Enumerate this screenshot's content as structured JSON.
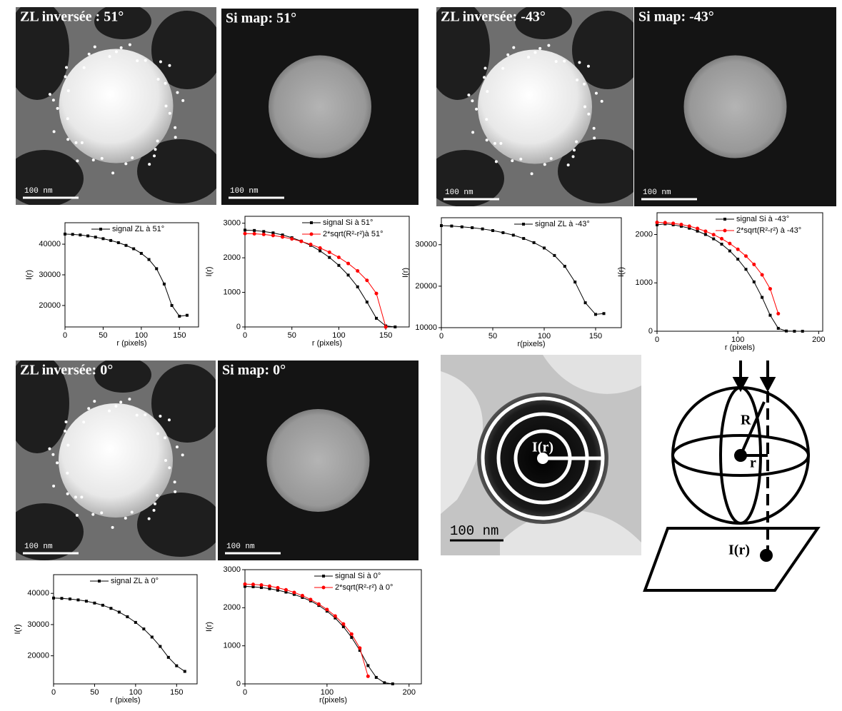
{
  "panels": [
    {
      "title": "ZL inversée : 51°",
      "scale_bar": "100 nm"
    },
    {
      "title": "Si map: 51°",
      "scale_bar": "100 nm"
    },
    {
      "title": "ZL inversée: -43°",
      "scale_bar": "100 nm"
    },
    {
      "title": "Si map: -43°",
      "scale_bar": "100 nm"
    },
    {
      "title": "ZL inversée: 0°",
      "scale_bar": "100 nm"
    },
    {
      "title": "Si map: 0°",
      "scale_bar": "100 nm"
    }
  ],
  "schematic": {
    "photo_label": "I(r)",
    "scale_bar": "100 nm",
    "radius_label": "R",
    "r_label": "r",
    "projection_label": "I(r)"
  },
  "chart_data": [
    {
      "type": "line",
      "x_label": "r (pixels)",
      "y_label": "I(r)",
      "xlim": [
        0,
        175
      ],
      "ylim": [
        13000,
        47000
      ],
      "xticks": [
        0,
        50,
        100,
        150
      ],
      "yticks": [
        20000,
        30000,
        40000
      ],
      "x": [
        0,
        10,
        20,
        30,
        40,
        50,
        60,
        70,
        80,
        90,
        100,
        110,
        120,
        130,
        140,
        150,
        160
      ],
      "series": [
        {
          "name": "signal ZL à 51°",
          "color": "#000000",
          "values": [
            43300,
            43200,
            43000,
            42700,
            42300,
            41800,
            41200,
            40500,
            39600,
            38500,
            37000,
            35000,
            32000,
            27000,
            20000,
            16500,
            16800
          ]
        }
      ]
    },
    {
      "type": "line",
      "x_label": "r (pixels)",
      "y_label": "I(r)",
      "xlim": [
        0,
        175
      ],
      "ylim": [
        0,
        3200
      ],
      "xticks": [
        0,
        50,
        100,
        150
      ],
      "yticks": [
        0,
        1000,
        2000,
        3000
      ],
      "x": [
        0,
        10,
        20,
        30,
        40,
        50,
        60,
        70,
        80,
        90,
        100,
        110,
        120,
        130,
        140,
        150,
        160
      ],
      "series": [
        {
          "name": "signal Si à 51°",
          "color": "#000000",
          "values": [
            2800,
            2790,
            2760,
            2720,
            2660,
            2580,
            2480,
            2360,
            2200,
            2010,
            1780,
            1500,
            1160,
            720,
            250,
            30,
            0
          ]
        },
        {
          "name": "2*sqrt(R²-r²)à 51°",
          "color": "#ff0000",
          "values": [
            2700,
            2694,
            2676,
            2645,
            2602,
            2546,
            2475,
            2388,
            2284,
            2160,
            2012,
            1836,
            1620,
            1347,
            969,
            0,
            null
          ]
        }
      ]
    },
    {
      "type": "line",
      "x_label": "r(pixels)",
      "y_label": "I(r)",
      "xlim": [
        0,
        175
      ],
      "ylim": [
        10000,
        36500
      ],
      "xticks": [
        0,
        50,
        100,
        150
      ],
      "yticks": [
        10000,
        20000,
        30000
      ],
      "x": [
        0,
        10,
        20,
        30,
        40,
        50,
        60,
        70,
        80,
        90,
        100,
        110,
        120,
        130,
        140,
        150,
        158
      ],
      "series": [
        {
          "name": "signal ZL à -43°",
          "color": "#000000",
          "values": [
            34600,
            34500,
            34300,
            34100,
            33800,
            33400,
            32900,
            32300,
            31500,
            30500,
            29200,
            27400,
            24800,
            21000,
            16000,
            13200,
            13400
          ]
        }
      ]
    },
    {
      "type": "line",
      "x_label": "r (pixels)",
      "y_label": "I(r)",
      "xlim": [
        0,
        205
      ],
      "ylim": [
        0,
        2450
      ],
      "xticks": [
        0,
        100,
        200
      ],
      "yticks": [
        0,
        1000,
        2000
      ],
      "x": [
        0,
        10,
        20,
        30,
        40,
        50,
        60,
        70,
        80,
        90,
        100,
        110,
        120,
        130,
        140,
        150,
        160,
        170,
        180
      ],
      "series": [
        {
          "name": "signal Si à -43°",
          "color": "#000000",
          "values": [
            2200,
            2220,
            2200,
            2170,
            2130,
            2070,
            2000,
            1910,
            1800,
            1660,
            1490,
            1280,
            1020,
            700,
            330,
            60,
            5,
            0,
            0
          ]
        },
        {
          "name": "2*sqrt(R²-r²) à -43°",
          "color": "#ff0000",
          "values": [
            2250,
            2245,
            2230,
            2206,
            2171,
            2125,
            2067,
            1997,
            1913,
            1813,
            1694,
            1553,
            1381,
            1166,
            877,
            364,
            null,
            null,
            null
          ]
        }
      ]
    },
    {
      "type": "line",
      "x_label": "r (pixels)",
      "y_label": "I(r)",
      "xlim": [
        0,
        175
      ],
      "ylim": [
        11000,
        46000
      ],
      "xticks": [
        0,
        50,
        100,
        150
      ],
      "yticks": [
        20000,
        30000,
        40000
      ],
      "x": [
        0,
        10,
        20,
        30,
        40,
        50,
        60,
        70,
        80,
        90,
        100,
        110,
        120,
        130,
        140,
        150,
        160
      ],
      "series": [
        {
          "name": "signal ZL à 0°",
          "color": "#000000",
          "values": [
            38500,
            38400,
            38200,
            37900,
            37500,
            36900,
            36200,
            35200,
            34000,
            32500,
            30700,
            28600,
            26000,
            23000,
            19500,
            16800,
            15000
          ]
        }
      ]
    },
    {
      "type": "line",
      "x_label": "r(pixels)",
      "y_label": "I(r)",
      "xlim": [
        0,
        215
      ],
      "ylim": [
        0,
        3000
      ],
      "xticks": [
        0,
        100,
        200
      ],
      "yticks": [
        0,
        1000,
        2000,
        3000
      ],
      "x": [
        0,
        10,
        20,
        30,
        40,
        50,
        60,
        70,
        80,
        90,
        100,
        110,
        120,
        130,
        140,
        150,
        160,
        170,
        180
      ],
      "series": [
        {
          "name": "signal Si à 0°",
          "color": "#000000",
          "values": [
            2560,
            2550,
            2530,
            2500,
            2460,
            2410,
            2350,
            2270,
            2180,
            2060,
            1910,
            1730,
            1500,
            1220,
            880,
            480,
            170,
            30,
            0
          ]
        },
        {
          "name": "2*sqrt(R²-r²) à 0°",
          "color": "#ff0000",
          "values": [
            2620,
            2614,
            2597,
            2567,
            2525,
            2470,
            2401,
            2317,
            2216,
            2096,
            1953,
            1781,
            1572,
            1307,
            941,
            200,
            null,
            null,
            null
          ]
        }
      ]
    }
  ]
}
